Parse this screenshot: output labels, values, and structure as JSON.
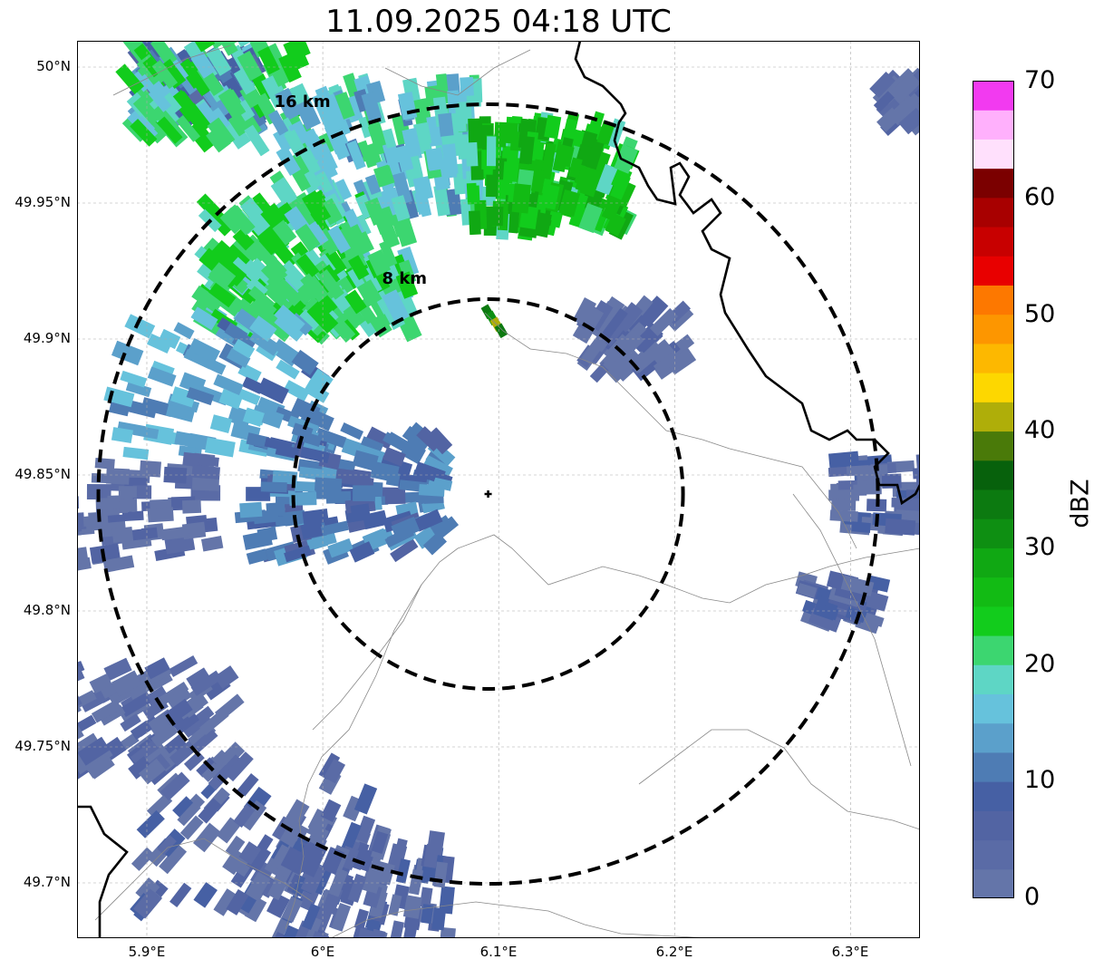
{
  "title": "11.09.2025 04:18 UTC",
  "map": {
    "lon_range": [
      5.86,
      6.34
    ],
    "lat_range": [
      49.68,
      50.01
    ],
    "radar_site": {
      "lon": 6.094,
      "lat": 49.843
    },
    "range_rings": [
      {
        "label": "8 km",
        "radius_km": 8
      },
      {
        "label": "16 km",
        "radius_km": 16
      }
    ],
    "lat_ticks": [
      "50°N",
      "49.95°N",
      "49.9°N",
      "49.85°N",
      "49.8°N",
      "49.75°N",
      "49.7°N"
    ],
    "lat_tick_values": [
      50.0,
      49.95,
      49.9,
      49.85,
      49.8,
      49.75,
      49.7
    ],
    "lon_ticks": [
      "5.9°E",
      "6°E",
      "6.1°E",
      "6.2°E",
      "6.3°E"
    ],
    "lon_tick_values": [
      5.9,
      6.0,
      6.1,
      6.2,
      6.3
    ],
    "grid": "on",
    "legend_placement": "right colorbar"
  },
  "colorbar": {
    "label": "dBZ",
    "ticks": [
      "0",
      "10",
      "20",
      "30",
      "40",
      "50",
      "60",
      "70"
    ],
    "min": 0,
    "max": 70,
    "colors": [
      "#6475a9",
      "#5a6ba6",
      "#5264a3",
      "#4660a4",
      "#4e7cb4",
      "#5ba0cb",
      "#66c2dc",
      "#5ed6c5",
      "#3cd670",
      "#12cc1c",
      "#12bb14",
      "#10a813",
      "#0e8f12",
      "#0c7a10",
      "#07610c",
      "#4a7a09",
      "#afae09",
      "#fdd700",
      "#fdb800",
      "#fd9600",
      "#fd7800",
      "#e80000",
      "#c80000",
      "#a80000",
      "#7b0000",
      "#ffe0fc",
      "#ffb0fc",
      "#ff74fc",
      "#f23af0"
    ]
  }
}
